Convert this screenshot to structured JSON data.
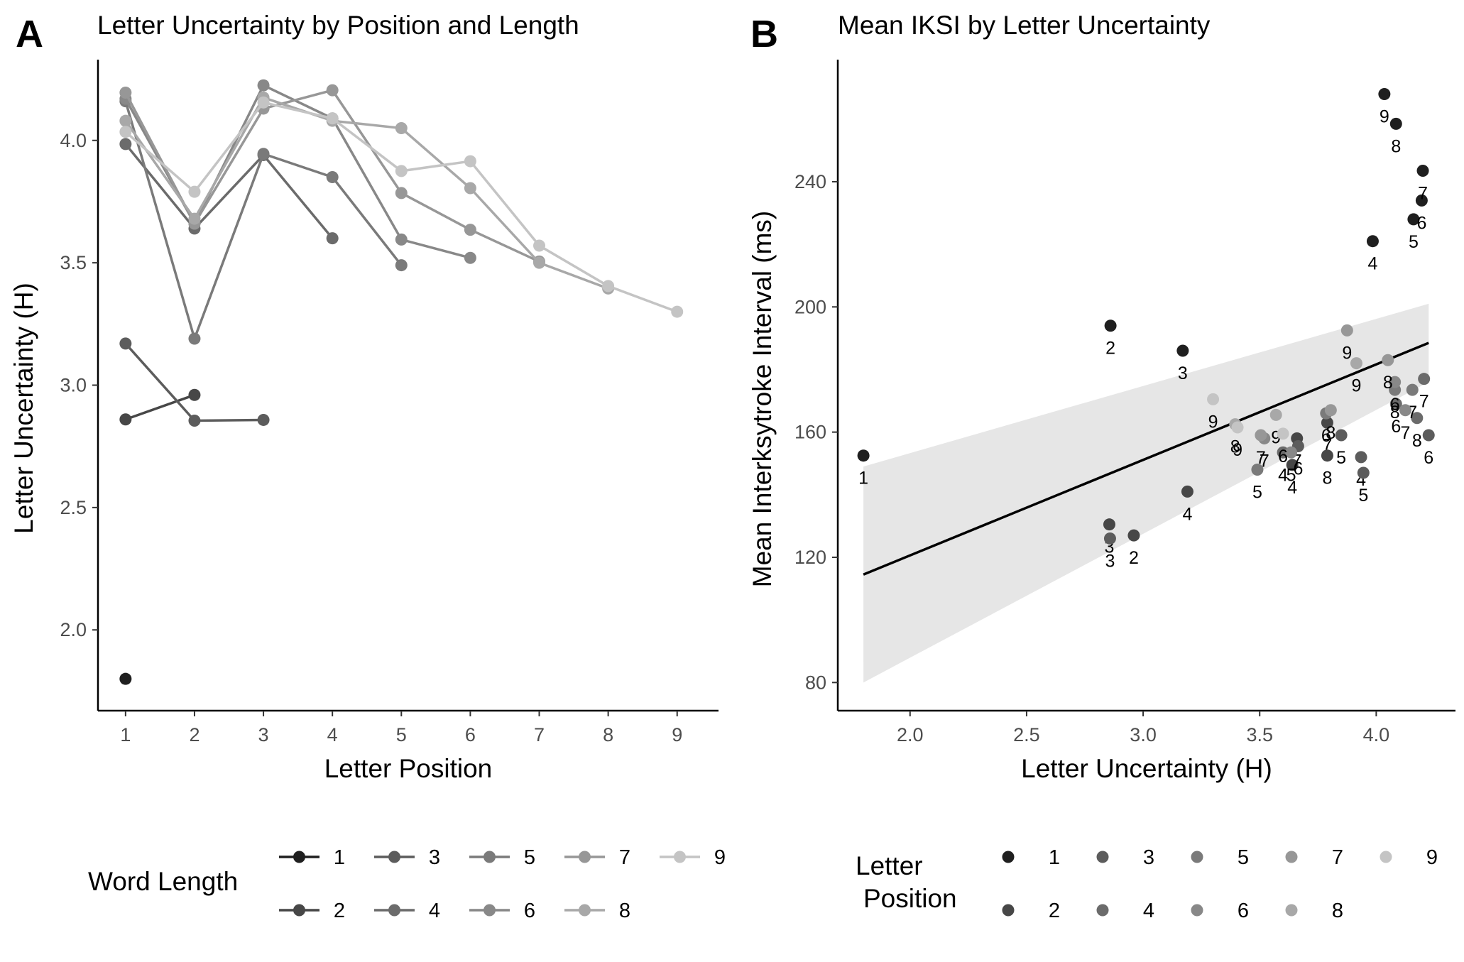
{
  "panel_a": {
    "letter": "A",
    "chart_data": {
      "type": "line",
      "title": "Letter Uncertainty by Position and Length",
      "xlabel": "Letter Position",
      "ylabel": "Letter Uncertainty (H)",
      "xlim": [
        0.6,
        9.6
      ],
      "ylim": [
        1.67,
        4.33
      ],
      "x_ticks": [
        1,
        2,
        3,
        4,
        5,
        6,
        7,
        8,
        9
      ],
      "y_ticks": [
        2.0,
        2.5,
        3.0,
        3.5,
        4.0
      ],
      "y_tick_labels": [
        "2.0",
        "2.5",
        "3.0",
        "3.5",
        "4.0"
      ],
      "series": [
        {
          "name": "1",
          "color": "#1f1f1f",
          "x": [
            1
          ],
          "values": [
            1.8
          ]
        },
        {
          "name": "2",
          "color": "#474747",
          "x": [
            1,
            2
          ],
          "values": [
            2.86,
            2.96
          ]
        },
        {
          "name": "3",
          "color": "#5c5c5c",
          "x": [
            1,
            2,
            3
          ],
          "values": [
            3.17,
            2.855,
            2.858
          ]
        },
        {
          "name": "4",
          "color": "#6b6b6b",
          "x": [
            1,
            2,
            3,
            4
          ],
          "values": [
            3.985,
            3.64,
            3.94,
            3.6
          ]
        },
        {
          "name": "5",
          "color": "#7a7a7a",
          "x": [
            1,
            2,
            3,
            4,
            5
          ],
          "values": [
            4.16,
            3.19,
            3.945,
            3.85,
            3.49
          ]
        },
        {
          "name": "6",
          "color": "#888888",
          "x": [
            1,
            2,
            3,
            4,
            5,
            6
          ],
          "values": [
            4.17,
            3.66,
            4.225,
            4.09,
            3.595,
            3.52
          ]
        },
        {
          "name": "7",
          "color": "#979797",
          "x": [
            1,
            2,
            3,
            4,
            5,
            6,
            7
          ],
          "values": [
            4.195,
            3.66,
            4.13,
            4.205,
            3.785,
            3.635,
            3.505
          ]
        },
        {
          "name": "8",
          "color": "#a8a8a8",
          "x": [
            1,
            2,
            3,
            4,
            5,
            6,
            7,
            8
          ],
          "values": [
            4.08,
            3.68,
            4.175,
            4.08,
            4.05,
            3.805,
            3.5,
            3.395
          ]
        },
        {
          "name": "9",
          "color": "#c4c4c4",
          "x": [
            1,
            2,
            3,
            4,
            5,
            6,
            7,
            8,
            9
          ],
          "values": [
            4.035,
            3.79,
            4.155,
            4.09,
            3.875,
            3.915,
            3.57,
            3.405,
            3.3
          ]
        }
      ],
      "legend": {
        "title": "Word Length",
        "position": "bottom"
      }
    }
  },
  "panel_b": {
    "letter": "B",
    "chart_data": {
      "type": "scatter",
      "title": "Mean IKSI by Letter Uncertainty",
      "xlabel": "Letter Uncertainty (H)",
      "ylabel": "Mean Interksytroke Interval (ms)",
      "xlim": [
        1.69,
        4.34
      ],
      "ylim": [
        71,
        279
      ],
      "x_ticks": [
        2.0,
        2.5,
        3.0,
        3.5,
        4.0
      ],
      "x_tick_labels": [
        "2.0",
        "2.5",
        "3.0",
        "3.5",
        "4.0"
      ],
      "y_ticks": [
        80,
        120,
        160,
        200,
        240
      ],
      "y_tick_labels": [
        "80",
        "120",
        "160",
        "200",
        "240"
      ],
      "regression": {
        "x": [
          1.8,
          4.225
        ],
        "y": [
          114.5,
          188.5
        ],
        "ci_lower": [
          80,
          176
        ],
        "ci_upper": [
          149,
          201
        ]
      },
      "position_colors": {
        "1": "#1f1f1f",
        "2": "#474747",
        "3": "#5c5c5c",
        "4": "#6b6b6b",
        "5": "#7a7a7a",
        "6": "#888888",
        "7": "#979797",
        "8": "#a8a8a8",
        "9": "#c4c4c4"
      },
      "points": [
        {
          "x": 1.8,
          "y": 152.5,
          "position": "1",
          "label": "1"
        },
        {
          "x": 2.86,
          "y": 194,
          "position": "1",
          "label": "2"
        },
        {
          "x": 3.17,
          "y": 186,
          "position": "1",
          "label": "3"
        },
        {
          "x": 3.985,
          "y": 221,
          "position": "1",
          "label": "4"
        },
        {
          "x": 4.16,
          "y": 228,
          "position": "1",
          "label": "5"
        },
        {
          "x": 4.195,
          "y": 234,
          "position": "1",
          "label": "6"
        },
        {
          "x": 4.2,
          "y": 243.5,
          "position": "1",
          "label": "7"
        },
        {
          "x": 4.085,
          "y": 258.5,
          "position": "1",
          "label": "8"
        },
        {
          "x": 4.035,
          "y": 268,
          "position": "1",
          "label": "9"
        },
        {
          "x": 2.96,
          "y": 127,
          "position": "2",
          "label": "2"
        },
        {
          "x": 2.855,
          "y": 130.5,
          "position": "2",
          "label": "3"
        },
        {
          "x": 3.64,
          "y": 149.5,
          "position": "2",
          "label": "4"
        },
        {
          "x": 3.19,
          "y": 141,
          "position": "2",
          "label": "4"
        },
        {
          "x": 3.66,
          "y": 158,
          "position": "2",
          "label": "7"
        },
        {
          "x": 3.79,
          "y": 163,
          "position": "2",
          "label": "7"
        },
        {
          "x": 3.79,
          "y": 152.5,
          "position": "2",
          "label": "8"
        },
        {
          "x": 2.858,
          "y": 126,
          "position": "3",
          "label": "3"
        },
        {
          "x": 3.935,
          "y": 152,
          "position": "3",
          "label": "4"
        },
        {
          "x": 3.945,
          "y": 147,
          "position": "3",
          "label": "5"
        },
        {
          "x": 3.665,
          "y": 155.5,
          "position": "3",
          "label": "6"
        },
        {
          "x": 3.85,
          "y": 159,
          "position": "3",
          "label": "5"
        },
        {
          "x": 4.225,
          "y": 159,
          "position": "3",
          "label": "6"
        },
        {
          "x": 4.085,
          "y": 169,
          "position": "4",
          "label": "6"
        },
        {
          "x": 4.205,
          "y": 177,
          "position": "4",
          "label": "7"
        },
        {
          "x": 4.175,
          "y": 164.5,
          "position": "4",
          "label": "8"
        },
        {
          "x": 3.6,
          "y": 153.5,
          "position": "4",
          "label": "4"
        },
        {
          "x": 3.785,
          "y": 166,
          "position": "5",
          "label": "6"
        },
        {
          "x": 4.08,
          "y": 173.5,
          "position": "5",
          "label": "8"
        },
        {
          "x": 4.155,
          "y": 173.5,
          "position": "5",
          "label": "7"
        },
        {
          "x": 3.49,
          "y": 148,
          "position": "5",
          "label": "5"
        },
        {
          "x": 3.635,
          "y": 153.5,
          "position": "6",
          "label": "5"
        },
        {
          "x": 4.08,
          "y": 176,
          "position": "6",
          "label": "6"
        },
        {
          "x": 4.125,
          "y": 167,
          "position": "6",
          "label": "7"
        },
        {
          "x": 3.52,
          "y": 158,
          "position": "6",
          "label": "7"
        },
        {
          "x": 3.805,
          "y": 167,
          "position": "7",
          "label": "8"
        },
        {
          "x": 4.05,
          "y": 183,
          "position": "7",
          "label": "8"
        },
        {
          "x": 3.505,
          "y": 159,
          "position": "7",
          "label": "7"
        },
        {
          "x": 3.875,
          "y": 192.5,
          "position": "7",
          "label": "9"
        },
        {
          "x": 3.395,
          "y": 162.5,
          "position": "8",
          "label": "8"
        },
        {
          "x": 3.915,
          "y": 182,
          "position": "8",
          "label": "9"
        },
        {
          "x": 3.57,
          "y": 165.5,
          "position": "8",
          "label": "9"
        },
        {
          "x": 3.405,
          "y": 161.5,
          "position": "9",
          "label": "9"
        },
        {
          "x": 3.3,
          "y": 170.5,
          "position": "9",
          "label": "9"
        },
        {
          "x": 3.6,
          "y": 159.5,
          "position": "9",
          "label": "6"
        }
      ],
      "legend": {
        "title_line1": "Letter",
        "title_line2": "Position",
        "position": "bottom"
      }
    }
  }
}
